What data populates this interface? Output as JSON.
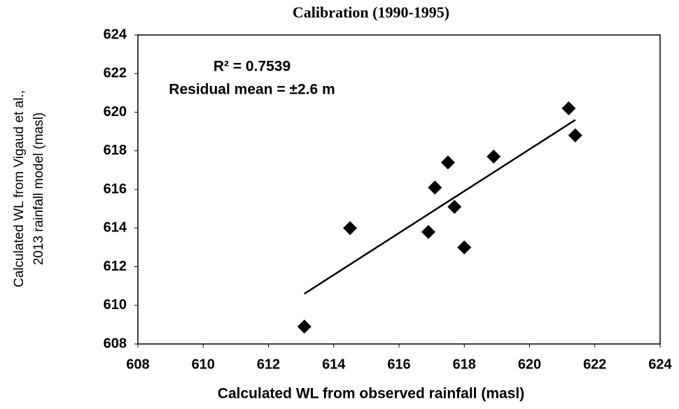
{
  "chart_data": {
    "type": "scatter",
    "title": "Calibration (1990-1995)",
    "x_label": "Calculated WL from observed rainfall (masl)",
    "y_label": [
      "Calculated WL from Vigaud et al.,",
      "2013 rainfall model (masl)"
    ],
    "annotations": [
      "R² = 0.7539",
      "Residual mean = ±2.6 m"
    ],
    "x": [
      613.1,
      614.5,
      616.9,
      617.1,
      617.5,
      617.7,
      618.0,
      618.9,
      621.2,
      621.4
    ],
    "values": [
      608.9,
      614.0,
      613.8,
      616.1,
      617.4,
      615.1,
      613.0,
      617.7,
      620.2,
      618.8
    ],
    "color": "#000000",
    "trendline": {
      "x": [
        613.1,
        621.4
      ],
      "y": [
        610.6,
        619.6
      ]
    },
    "xlim": [
      608,
      624
    ],
    "ylim": [
      608,
      624
    ],
    "xticks": [
      608,
      610,
      612,
      614,
      616,
      618,
      620,
      622,
      624
    ],
    "yticks": [
      608,
      610,
      612,
      614,
      616,
      618,
      620,
      622,
      624
    ],
    "grid": false
  }
}
